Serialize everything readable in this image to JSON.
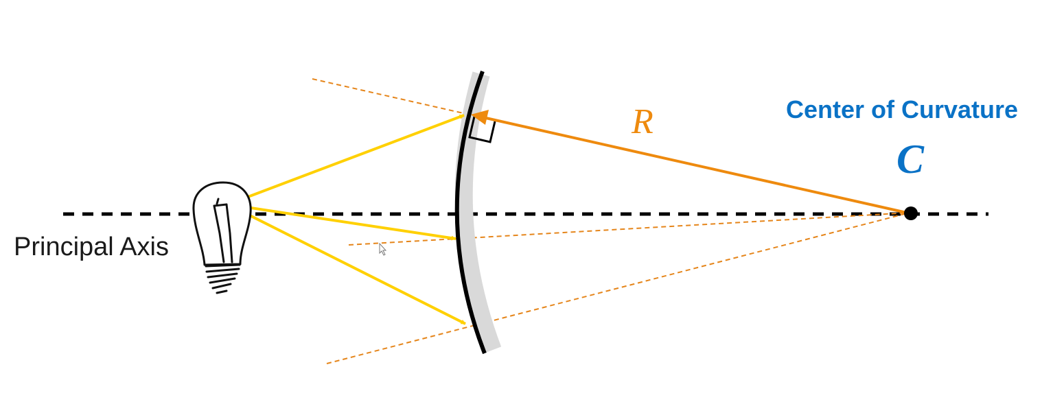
{
  "labels": {
    "principal_axis": "Principal Axis",
    "center_of_curvature": "Center of Curvature",
    "center_symbol": "C",
    "radius_symbol": "R"
  },
  "colors": {
    "ray": "#FFD000",
    "radius": "#EE8A0E",
    "extension": "#E5851A",
    "label_blue": "#0A72C6",
    "mirror_back": "#D9D9D9",
    "mirror_surface": "#000000"
  },
  "icons": {
    "light_source": "light-bulb-icon",
    "cursor": "mouse-pointer-icon"
  }
}
